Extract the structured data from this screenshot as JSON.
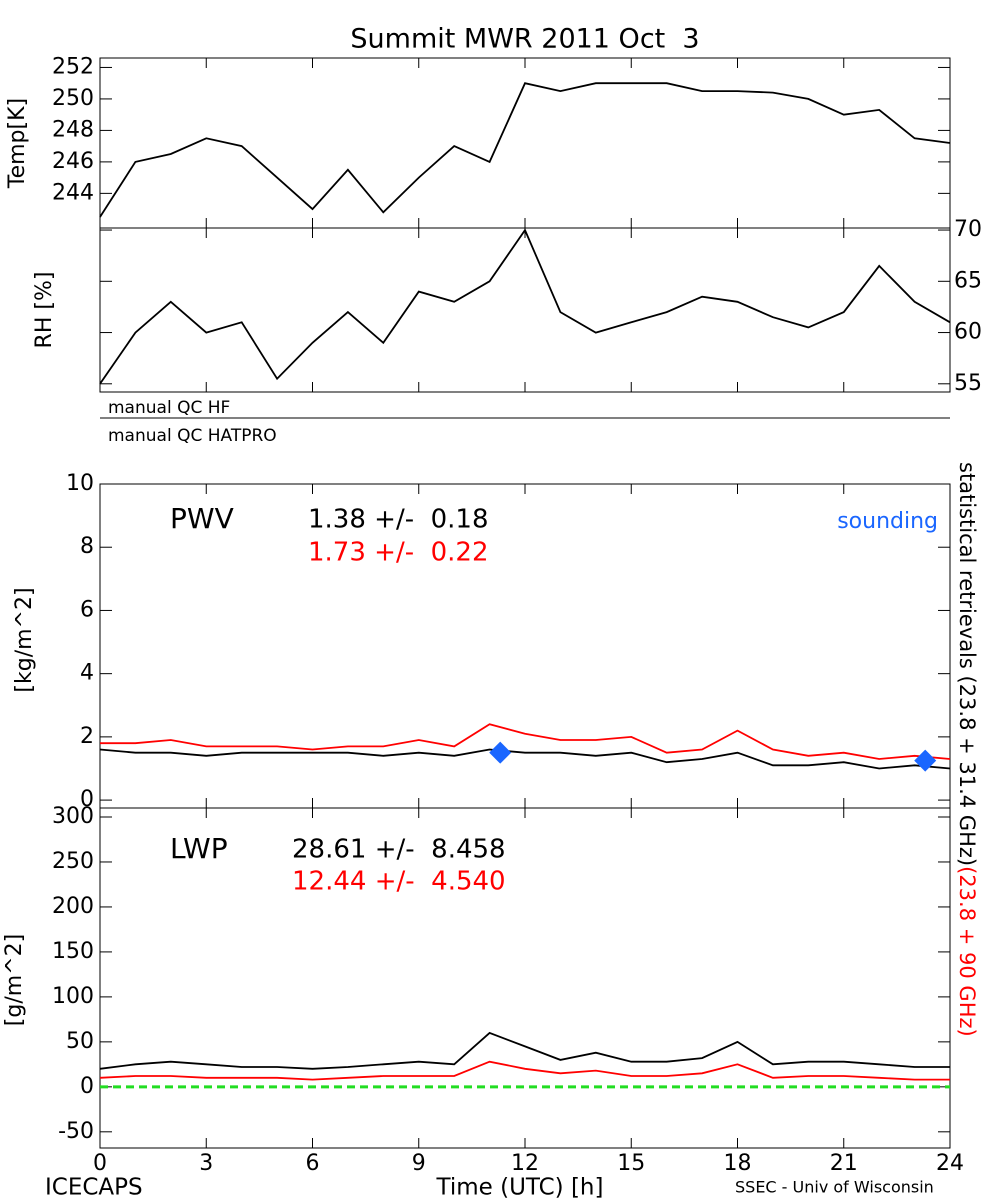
{
  "title": "Summit MWR 2011 Oct  3",
  "footer_left": "ICECAPS",
  "footer_right": "SSEC - Univ of Wisconsin",
  "right_label": "statistical retrievals (23.8 + 31.4 GHz)",
  "right_label_red": "(23.8 + 90 GHz)",
  "qc_labels": [
    "manual QC HF",
    "manual QC HATPRO"
  ],
  "chart_data": [
    {
      "type": "line",
      "ylabel": "Temp[K]",
      "yaxis_side": "left",
      "xlim": [
        0,
        24
      ],
      "ylim": [
        241.8,
        252.6
      ],
      "yticks": [
        244,
        246,
        248,
        250,
        252
      ],
      "x": [
        0,
        1,
        2,
        3,
        4,
        5,
        6,
        7,
        8,
        9,
        10,
        11,
        12,
        13,
        14,
        15,
        16,
        17,
        18,
        19,
        20,
        21,
        22,
        23,
        24
      ],
      "series": [
        {
          "color": "#000000",
          "values": [
            242.5,
            246,
            246.5,
            247.5,
            247,
            245,
            243,
            245.5,
            242.8,
            245,
            247,
            246,
            251,
            250.5,
            251,
            251,
            251,
            250.5,
            250.5,
            250.4,
            250,
            249,
            249.3,
            247.5,
            247.2
          ]
        }
      ]
    },
    {
      "type": "line",
      "ylabel": "RH [%]",
      "yaxis_side": "right",
      "xlim": [
        0,
        24
      ],
      "ylim": [
        54.2,
        70.2
      ],
      "yticks": [
        55,
        60,
        65,
        70
      ],
      "x": [
        0,
        1,
        2,
        3,
        4,
        5,
        6,
        7,
        8,
        9,
        10,
        11,
        12,
        13,
        14,
        15,
        16,
        17,
        18,
        19,
        20,
        21,
        22,
        23,
        24
      ],
      "series": [
        {
          "color": "#000000",
          "values": [
            55,
            60,
            63,
            60,
            61,
            55.5,
            59,
            62,
            59,
            64,
            63,
            65,
            70,
            62,
            60,
            61,
            62,
            63.5,
            63,
            61.5,
            60.5,
            62,
            66.5,
            63,
            61
          ]
        }
      ]
    },
    {
      "type": "line",
      "ylabel": "[kg/m^2]",
      "yaxis_side": "left",
      "xlim": [
        0,
        24
      ],
      "ylim": [
        -0.25,
        10
      ],
      "yticks": [
        0,
        2,
        4,
        6,
        8,
        10
      ],
      "x": [
        0,
        1,
        2,
        3,
        4,
        5,
        6,
        7,
        8,
        9,
        10,
        11,
        12,
        13,
        14,
        15,
        16,
        17,
        18,
        19,
        20,
        21,
        22,
        23,
        24
      ],
      "series": [
        {
          "color": "#000000",
          "values": [
            1.6,
            1.5,
            1.5,
            1.4,
            1.5,
            1.5,
            1.5,
            1.5,
            1.4,
            1.5,
            1.4,
            1.6,
            1.5,
            1.5,
            1.4,
            1.5,
            1.2,
            1.3,
            1.5,
            1.1,
            1.1,
            1.2,
            1.0,
            1.1,
            1.0
          ]
        },
        {
          "color": "#ff0000",
          "values": [
            1.8,
            1.8,
            1.9,
            1.7,
            1.7,
            1.7,
            1.6,
            1.7,
            1.7,
            1.9,
            1.7,
            2.4,
            2.1,
            1.9,
            1.9,
            2.0,
            1.5,
            1.6,
            2.2,
            1.6,
            1.4,
            1.5,
            1.3,
            1.4,
            1.3
          ]
        },
        {
          "type": "scatter",
          "name": "sounding",
          "color": "#1a66ff",
          "x": [
            11.3,
            23.3
          ],
          "values": [
            1.5,
            1.25
          ]
        }
      ],
      "annotations": [
        {
          "text": "PWV",
          "color": "#000000"
        },
        {
          "text": "1.38 +/-  0.18",
          "color": "#000000"
        },
        {
          "text": "1.73 +/-  0.22",
          "color": "#ff0000"
        }
      ]
    },
    {
      "type": "line",
      "ylabel": "[g/m^2]",
      "yaxis_side": "left",
      "xlabel": "Time (UTC) [h]",
      "xlim": [
        0,
        24
      ],
      "xticks": [
        0,
        3,
        6,
        9,
        12,
        15,
        18,
        21,
        24
      ],
      "ylim": [
        -68,
        310
      ],
      "yticks": [
        -50,
        0,
        50,
        100,
        150,
        200,
        250,
        300
      ],
      "x": [
        0,
        1,
        2,
        3,
        4,
        5,
        6,
        7,
        8,
        9,
        10,
        11,
        12,
        13,
        14,
        15,
        16,
        17,
        18,
        19,
        20,
        21,
        22,
        23,
        24
      ],
      "series": [
        {
          "color": "#000000",
          "values": [
            20,
            25,
            28,
            25,
            22,
            22,
            20,
            22,
            25,
            28,
            25,
            60,
            45,
            30,
            38,
            28,
            28,
            32,
            50,
            25,
            28,
            28,
            25,
            22,
            22
          ]
        },
        {
          "color": "#ff0000",
          "values": [
            10,
            12,
            12,
            10,
            10,
            10,
            8,
            10,
            12,
            12,
            12,
            28,
            20,
            15,
            18,
            12,
            12,
            15,
            25,
            10,
            12,
            12,
            10,
            8,
            8
          ]
        }
      ],
      "reference_line": {
        "value": 0,
        "color": "#22dd22"
      },
      "annotations": [
        {
          "text": "LWP",
          "color": "#000000"
        },
        {
          "text": "28.61 +/-  8.458",
          "color": "#000000"
        },
        {
          "text": "12.44 +/-  4.540",
          "color": "#ff0000"
        }
      ]
    }
  ]
}
